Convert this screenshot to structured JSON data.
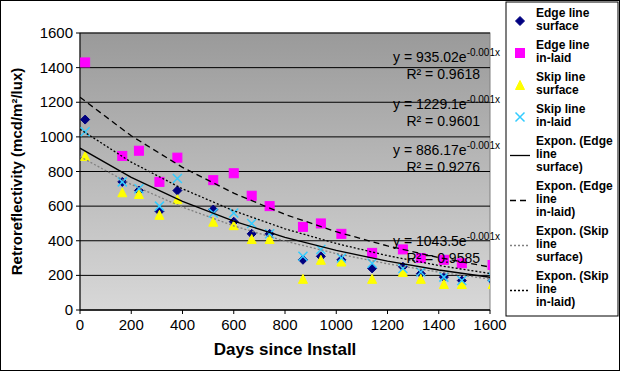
{
  "chart_data": {
    "type": "scatter",
    "x_label": "Days since Install",
    "y_label": "Retroreflectivity (mcd/m²/lux)",
    "xlim": [
      0,
      1600
    ],
    "xticks": [
      0,
      200,
      400,
      600,
      800,
      1000,
      1200,
      1400,
      1600
    ],
    "ylim": [
      0,
      1600
    ],
    "yticks": [
      0,
      200,
      400,
      600,
      800,
      1000,
      1200,
      1400,
      1600
    ],
    "grid": true,
    "legend": "right",
    "series": [
      {
        "name": "Edge line surface",
        "type": "scatter",
        "marker": "diamond",
        "color": "#000080",
        "x": [
          20,
          165,
          230,
          310,
          380,
          520,
          600,
          670,
          740,
          870,
          940,
          1020,
          1140,
          1260,
          1330,
          1420,
          1490,
          1610
        ],
        "values": [
          1100,
          740,
          690,
          570,
          690,
          580,
          510,
          440,
          440,
          290,
          310,
          290,
          240,
          250,
          210,
          190,
          170,
          170
        ]
      },
      {
        "name": "Edge line in-laid",
        "type": "scatter",
        "marker": "square",
        "color": "#ff00ff",
        "x": [
          20,
          165,
          230,
          310,
          380,
          520,
          600,
          670,
          740,
          870,
          940,
          1020,
          1140,
          1260,
          1330,
          1420,
          1490,
          1610
        ],
        "values": [
          1430,
          890,
          920,
          740,
          880,
          750,
          790,
          660,
          600,
          480,
          500,
          440,
          330,
          350,
          300,
          290,
          270,
          260
        ]
      },
      {
        "name": "Skip line surface",
        "type": "scatter",
        "marker": "triangle",
        "color": "#ffff00",
        "x": [
          20,
          165,
          230,
          310,
          380,
          520,
          600,
          670,
          740,
          870,
          940,
          1020,
          1140,
          1260,
          1330,
          1420,
          1490,
          1610
        ],
        "values": [
          890,
          680,
          670,
          550,
          640,
          510,
          490,
          410,
          410,
          180,
          290,
          280,
          180,
          220,
          180,
          150,
          150,
          150
        ]
      },
      {
        "name": "Skip line in-laid",
        "type": "scatter",
        "marker": "x",
        "color": "#33ccff",
        "x": [
          20,
          165,
          230,
          310,
          380,
          520,
          600,
          670,
          740,
          870,
          940,
          1020,
          1140,
          1260,
          1330,
          1420,
          1490,
          1610
        ],
        "values": [
          1030,
          740,
          700,
          600,
          760,
          560,
          560,
          500,
          440,
          310,
          350,
          300,
          270,
          240,
          220,
          190,
          170,
          190
        ]
      },
      {
        "name": "Expon. (Edge line surface)",
        "type": "line",
        "line_style": "solid",
        "color": "#000000",
        "x": [
          0,
          200,
          400,
          600,
          800,
          1000,
          1200,
          1400,
          1600
        ],
        "values": [
          935,
          766,
          627,
          513,
          420,
          344,
          282,
          231,
          189
        ]
      },
      {
        "name": "Expon. (Edge line in-laid)",
        "type": "line",
        "line_style": "dashed",
        "color": "#000000",
        "x": [
          0,
          200,
          400,
          600,
          800,
          1000,
          1200,
          1400,
          1600
        ],
        "values": [
          1229,
          1006,
          824,
          675,
          552,
          452,
          370,
          303,
          248
        ]
      },
      {
        "name": "Expon. (Skip line surface)",
        "type": "line",
        "line_style": "dotted",
        "color": "#808080",
        "x": [
          0,
          200,
          400,
          600,
          800,
          1000,
          1200,
          1400,
          1600
        ],
        "values": [
          886,
          725,
          594,
          486,
          398,
          326,
          267,
          219,
          179
        ]
      },
      {
        "name": "Expon. (Skip line in-laid)",
        "type": "line",
        "line_style": "dotted",
        "color": "#000000",
        "x": [
          0,
          200,
          400,
          600,
          800,
          1000,
          1200,
          1400,
          1600
        ],
        "values": [
          1044,
          854,
          700,
          573,
          469,
          384,
          314,
          257,
          211
        ]
      }
    ],
    "annotations": [
      {
        "equation": "y = 935.02e-0.001x",
        "r2": "R² = 0.9618"
      },
      {
        "equation": "y = 1229.1e-0.001x",
        "r2": "R² = 0.9601"
      },
      {
        "equation": "y = 886.17e-0.001x",
        "r2": "R² = 0.9276"
      },
      {
        "equation": "y = 1043.5e-0.001x",
        "r2": "R² = 0.9585"
      }
    ]
  }
}
